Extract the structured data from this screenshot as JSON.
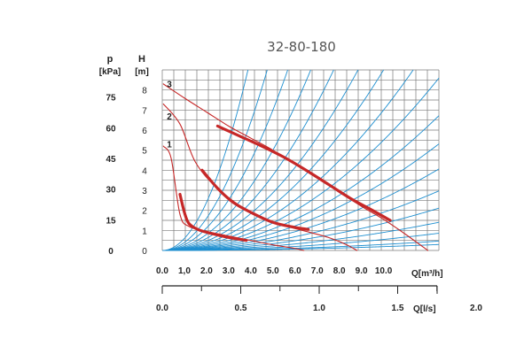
{
  "chart_data": {
    "type": "line",
    "title": "32-80-180",
    "axes": {
      "h_label": "H",
      "h_unit": "[m]",
      "p_label": "p",
      "p_unit": "[kPa]",
      "q1_label": "Q[m³/h]",
      "q2_label": "Q[l/s]"
    },
    "h_ticks": [
      "0",
      "1",
      "2",
      "3",
      "4",
      "5",
      "6",
      "7",
      "8"
    ],
    "p_ticks": [
      "0",
      "15",
      "30",
      "45",
      "60",
      "75"
    ],
    "q1_ticks": [
      "0.0",
      "1,0",
      "2.0",
      "3.0",
      "4.0",
      "5.0",
      "6.0",
      "7.0",
      "8.0",
      "9.0",
      "10.0"
    ],
    "q2_ticks": [
      "0.0",
      "0.5",
      "1.0",
      "1.5",
      "2.0",
      "2.5",
      "3.0"
    ],
    "xlim_m3h": [
      0,
      12.5
    ],
    "ylim_m": [
      0,
      9
    ],
    "grid": true,
    "curve_labels": [
      "1",
      "2",
      "3"
    ],
    "colors": {
      "pump": "#c62828",
      "system": "#1e8fd0",
      "grid": "#7a7a7a"
    },
    "series": [
      {
        "name": "1",
        "kind": "speed curve",
        "x": [
          0.05,
          0.4,
          0.8,
          1.2,
          2,
          3,
          4,
          5,
          6,
          6.4
        ],
        "y": [
          5.2,
          4.6,
          1.8,
          1.2,
          0.95,
          0.72,
          0.5,
          0.28,
          0.1,
          0
        ]
      },
      {
        "name": "2",
        "kind": "speed curve",
        "x": [
          0.05,
          0.8,
          1.5,
          2.5,
          4,
          5.5,
          6.5,
          7.5,
          8.3,
          8.8
        ],
        "y": [
          7.3,
          6.3,
          4.4,
          3.1,
          1.9,
          1.25,
          0.95,
          0.65,
          0.3,
          0
        ]
      },
      {
        "name": "3",
        "kind": "speed curve",
        "x": [
          0.05,
          1,
          2,
          3,
          4,
          5,
          6,
          7,
          8,
          9,
          10,
          11,
          12
        ],
        "y": [
          8.3,
          7.6,
          6.9,
          6.2,
          5.6,
          5.0,
          4.3,
          3.6,
          2.9,
          2.2,
          1.55,
          0.8,
          0
        ]
      },
      {
        "name": "1 operating range",
        "x": [
          0.8,
          1.0,
          1.2,
          1.6,
          2.2,
          3,
          3.8
        ],
        "y": [
          2.8,
          1.9,
          1.35,
          1.05,
          0.85,
          0.65,
          0.5
        ]
      },
      {
        "name": "2 operating range",
        "x": [
          1.8,
          2.5,
          3.2,
          4,
          5,
          6,
          6.6
        ],
        "y": [
          4.0,
          3.1,
          2.4,
          1.9,
          1.4,
          1.15,
          1.05
        ]
      },
      {
        "name": "3 operating range",
        "x": [
          2.5,
          3.5,
          4.5,
          5.5,
          6.5,
          7.5,
          8.5,
          9.5,
          10.3
        ],
        "y": [
          6.2,
          5.7,
          5.2,
          4.65,
          4.0,
          3.3,
          2.6,
          2.0,
          1.5
        ]
      },
      {
        "name": "system curves",
        "kind": "parabolas H = k·Q²",
        "k": [
          60,
          40,
          28,
          20,
          15,
          11.5,
          9,
          7,
          5.5,
          4.3,
          3.4,
          2.6,
          1.9,
          1.35,
          0.9,
          0.55,
          0.3,
          0.19
        ]
      }
    ]
  }
}
